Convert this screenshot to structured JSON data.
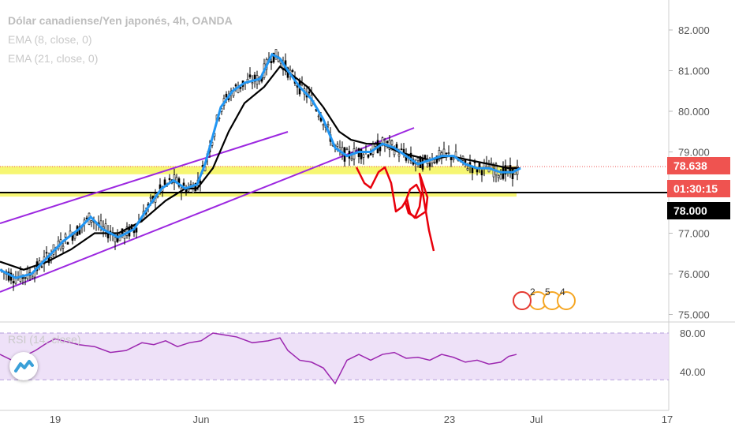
{
  "title": "Dólar canadiense/Yen japonés, 4h, OANDA",
  "indicators": [
    "EMA (8, close, 0)",
    "EMA (21, close, 0)"
  ],
  "rsi_label": "RSI (14, close)",
  "price_tags": {
    "last": "78.638",
    "countdown": "01:30:15",
    "level": "78.000"
  },
  "event_markers": [
    "2",
    "5",
    "4"
  ],
  "colors": {
    "price_tag_bg": "#ef5350",
    "level_tag_bg": "#000000",
    "ema8": "#2196f3",
    "ema21": "#000000",
    "rsi": "#9c27b0",
    "channel": "#9c27e0",
    "highlight": "#f5f55a",
    "drawing": "#e8000b",
    "rsi_band": "#ead9f6"
  },
  "chart_data": [
    {
      "type": "candlestick",
      "title": "Dólar canadiense/Yen japonés, 4h, OANDA",
      "y_ticks": [
        "82.000",
        "81.000",
        "80.000",
        "79.000",
        "78.000",
        "77.000",
        "76.000",
        "75.000"
      ],
      "x_ticks": [
        "19",
        "Jun",
        "15",
        "23",
        "Jul",
        "17"
      ],
      "ylim": [
        75.0,
        82.3
      ],
      "series": [
        {
          "name": "EMA (8, close, 0)",
          "points": [
            [
              0,
              76.1
            ],
            [
              20,
              75.9
            ],
            [
              40,
              76.0
            ],
            [
              60,
              76.4
            ],
            [
              80,
              76.8
            ],
            [
              100,
              77.1
            ],
            [
              115,
              77.4
            ],
            [
              130,
              77.1
            ],
            [
              150,
              76.9
            ],
            [
              170,
              77.1
            ],
            [
              190,
              77.7
            ],
            [
              205,
              78.1
            ],
            [
              220,
              78.3
            ],
            [
              235,
              78.1
            ],
            [
              250,
              78.2
            ],
            [
              260,
              78.7
            ],
            [
              270,
              79.4
            ],
            [
              280,
              80.1
            ],
            [
              295,
              80.5
            ],
            [
              310,
              80.7
            ],
            [
              330,
              80.8
            ],
            [
              345,
              81.4
            ],
            [
              355,
              81.3
            ],
            [
              365,
              81.0
            ],
            [
              380,
              80.6
            ],
            [
              395,
              80.3
            ],
            [
              410,
              79.8
            ],
            [
              425,
              79.1
            ],
            [
              440,
              78.9
            ],
            [
              455,
              79.0
            ],
            [
              470,
              79.0
            ],
            [
              485,
              79.2
            ],
            [
              500,
              79.1
            ],
            [
              515,
              78.9
            ],
            [
              530,
              78.7
            ],
            [
              545,
              78.8
            ],
            [
              560,
              78.9
            ],
            [
              575,
              78.9
            ],
            [
              590,
              78.7
            ],
            [
              605,
              78.6
            ],
            [
              620,
              78.6
            ],
            [
              635,
              78.5
            ],
            [
              650,
              78.5
            ],
            [
              660,
              78.6
            ]
          ]
        },
        {
          "name": "EMA (21, close, 0)",
          "points": [
            [
              0,
              76.3
            ],
            [
              30,
              76.1
            ],
            [
              60,
              76.3
            ],
            [
              90,
              76.6
            ],
            [
              120,
              77.0
            ],
            [
              150,
              77.0
            ],
            [
              180,
              77.3
            ],
            [
              210,
              77.8
            ],
            [
              235,
              78.1
            ],
            [
              250,
              78.1
            ],
            [
              270,
              78.6
            ],
            [
              290,
              79.5
            ],
            [
              310,
              80.2
            ],
            [
              335,
              80.6
            ],
            [
              355,
              81.1
            ],
            [
              370,
              80.9
            ],
            [
              390,
              80.6
            ],
            [
              410,
              80.1
            ],
            [
              430,
              79.5
            ],
            [
              445,
              79.3
            ],
            [
              465,
              79.2
            ],
            [
              485,
              79.2
            ],
            [
              505,
              79.0
            ],
            [
              525,
              78.9
            ],
            [
              545,
              78.8
            ],
            [
              570,
              78.9
            ],
            [
              595,
              78.8
            ],
            [
              620,
              78.7
            ],
            [
              645,
              78.6
            ],
            [
              660,
              78.6
            ]
          ]
        },
        {
          "name": "RSI (14, close)",
          "points": [
            [
              0,
              58
            ],
            [
              15,
              52
            ],
            [
              30,
              56
            ],
            [
              45,
              62
            ],
            [
              60,
              70
            ],
            [
              70,
              74
            ],
            [
              85,
              71
            ],
            [
              100,
              68
            ],
            [
              120,
              66
            ],
            [
              140,
              60
            ],
            [
              160,
              62
            ],
            [
              180,
              70
            ],
            [
              195,
              68
            ],
            [
              210,
              72
            ],
            [
              225,
              66
            ],
            [
              240,
              70
            ],
            [
              255,
              72
            ],
            [
              270,
              80
            ],
            [
              285,
              78
            ],
            [
              300,
              76
            ],
            [
              320,
              70
            ],
            [
              340,
              72
            ],
            [
              355,
              75
            ],
            [
              365,
              62
            ],
            [
              380,
              52
            ],
            [
              395,
              50
            ],
            [
              410,
              44
            ],
            [
              425,
              28
            ],
            [
              440,
              52
            ],
            [
              455,
              58
            ],
            [
              470,
              52
            ],
            [
              485,
              58
            ],
            [
              500,
              60
            ],
            [
              515,
              54
            ],
            [
              530,
              55
            ],
            [
              545,
              52
            ],
            [
              560,
              58
            ],
            [
              575,
              55
            ],
            [
              590,
              50
            ],
            [
              605,
              52
            ],
            [
              620,
              48
            ],
            [
              635,
              50
            ],
            [
              645,
              56
            ],
            [
              655,
              58
            ]
          ]
        }
      ],
      "level_line": 78.0,
      "last_price": 78.638,
      "highlight_bands": [
        [
          78.45,
          78.65
        ],
        [
          77.9,
          78.02
        ]
      ],
      "rsi_ticks": [
        "80.00",
        "40.00"
      ]
    }
  ]
}
